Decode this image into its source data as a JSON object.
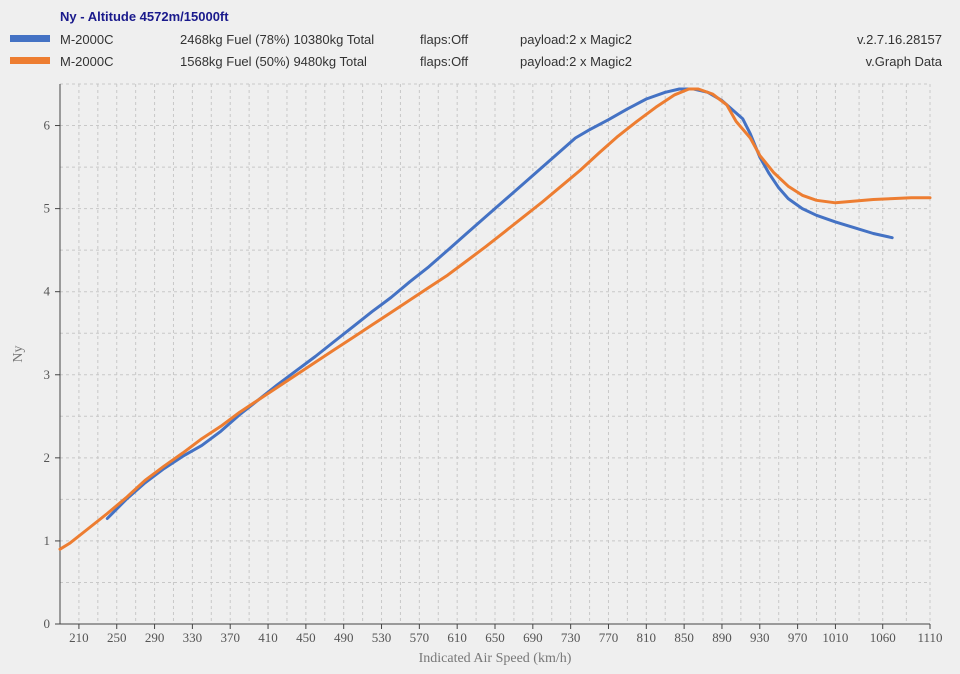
{
  "header": {
    "title": "Ny - Altitude 4572m/15000ft"
  },
  "legend": [
    {
      "color": "#4472c4",
      "name": "M-2000C",
      "fuel": "2468kg Fuel (78%) 10380kg Total",
      "flaps": "flaps:Off",
      "payload": "payload:2 x Magic2",
      "extra": "v.2.7.16.28157"
    },
    {
      "color": "#ed7d31",
      "name": "M-2000C",
      "fuel": "1568kg Fuel (50%) 9480kg Total",
      "flaps": "flaps:Off",
      "payload": "payload:2 x Magic2",
      "extra": "v.Graph Data"
    }
  ],
  "chart_data": {
    "type": "line",
    "xlabel": "Indicated Air Speed (km/h)",
    "ylabel": "Ny",
    "xlim": [
      190,
      1110
    ],
    "ylim": [
      0,
      6.5
    ],
    "x_ticks": [
      210,
      250,
      290,
      330,
      370,
      410,
      450,
      490,
      530,
      570,
      610,
      650,
      690,
      730,
      770,
      810,
      850,
      890,
      930,
      970,
      1010,
      1060,
      1110
    ],
    "y_ticks": [
      0,
      1,
      2,
      3,
      4,
      5,
      6
    ],
    "grid": true,
    "series": [
      {
        "name": "M-2000C 2468kg Fuel (78%) 10380kg Total",
        "color": "#4472c4",
        "points": [
          [
            240,
            1.27
          ],
          [
            260,
            1.5
          ],
          [
            280,
            1.7
          ],
          [
            300,
            1.87
          ],
          [
            320,
            2.02
          ],
          [
            340,
            2.15
          ],
          [
            360,
            2.32
          ],
          [
            380,
            2.52
          ],
          [
            400,
            2.7
          ],
          [
            420,
            2.88
          ],
          [
            440,
            3.05
          ],
          [
            460,
            3.22
          ],
          [
            480,
            3.4
          ],
          [
            500,
            3.58
          ],
          [
            520,
            3.76
          ],
          [
            540,
            3.93
          ],
          [
            560,
            4.12
          ],
          [
            580,
            4.3
          ],
          [
            600,
            4.5
          ],
          [
            620,
            4.7
          ],
          [
            640,
            4.9
          ],
          [
            660,
            5.1
          ],
          [
            680,
            5.3
          ],
          [
            700,
            5.5
          ],
          [
            720,
            5.7
          ],
          [
            735,
            5.85
          ],
          [
            750,
            5.95
          ],
          [
            770,
            6.07
          ],
          [
            790,
            6.2
          ],
          [
            810,
            6.32
          ],
          [
            830,
            6.4
          ],
          [
            845,
            6.44
          ],
          [
            860,
            6.44
          ],
          [
            875,
            6.4
          ],
          [
            890,
            6.3
          ],
          [
            900,
            6.2
          ],
          [
            912,
            6.08
          ],
          [
            920,
            5.9
          ],
          [
            930,
            5.62
          ],
          [
            940,
            5.42
          ],
          [
            950,
            5.25
          ],
          [
            960,
            5.12
          ],
          [
            975,
            5.0
          ],
          [
            990,
            4.92
          ],
          [
            1010,
            4.84
          ],
          [
            1030,
            4.77
          ],
          [
            1050,
            4.7
          ],
          [
            1070,
            4.65
          ]
        ]
      },
      {
        "name": "M-2000C 1568kg Fuel (50%) 9480kg Total",
        "color": "#ed7d31",
        "points": [
          [
            190,
            0.9
          ],
          [
            200,
            0.97
          ],
          [
            220,
            1.15
          ],
          [
            240,
            1.33
          ],
          [
            260,
            1.52
          ],
          [
            280,
            1.73
          ],
          [
            300,
            1.9
          ],
          [
            320,
            2.06
          ],
          [
            340,
            2.23
          ],
          [
            360,
            2.38
          ],
          [
            380,
            2.55
          ],
          [
            400,
            2.7
          ],
          [
            420,
            2.85
          ],
          [
            440,
            3.0
          ],
          [
            460,
            3.15
          ],
          [
            480,
            3.3
          ],
          [
            500,
            3.45
          ],
          [
            520,
            3.6
          ],
          [
            540,
            3.75
          ],
          [
            560,
            3.9
          ],
          [
            580,
            4.05
          ],
          [
            600,
            4.2
          ],
          [
            620,
            4.37
          ],
          [
            640,
            4.54
          ],
          [
            660,
            4.72
          ],
          [
            680,
            4.9
          ],
          [
            700,
            5.08
          ],
          [
            720,
            5.27
          ],
          [
            740,
            5.46
          ],
          [
            760,
            5.67
          ],
          [
            780,
            5.87
          ],
          [
            800,
            6.05
          ],
          [
            820,
            6.22
          ],
          [
            840,
            6.37
          ],
          [
            855,
            6.44
          ],
          [
            865,
            6.44
          ],
          [
            880,
            6.38
          ],
          [
            895,
            6.25
          ],
          [
            905,
            6.05
          ],
          [
            920,
            5.85
          ],
          [
            930,
            5.64
          ],
          [
            945,
            5.43
          ],
          [
            960,
            5.27
          ],
          [
            975,
            5.16
          ],
          [
            990,
            5.1
          ],
          [
            1010,
            5.07
          ],
          [
            1030,
            5.09
          ],
          [
            1050,
            5.11
          ],
          [
            1070,
            5.12
          ],
          [
            1090,
            5.13
          ],
          [
            1110,
            5.13
          ]
        ]
      }
    ]
  }
}
